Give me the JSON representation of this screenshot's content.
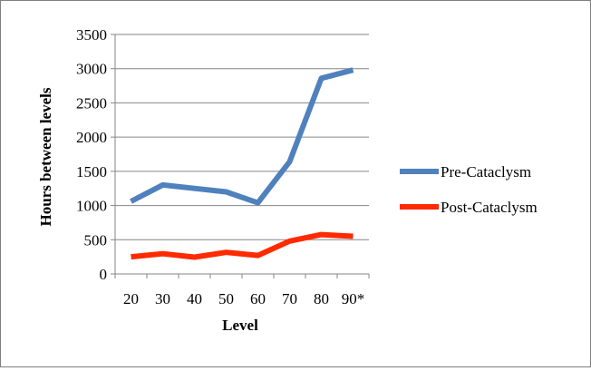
{
  "chart_data": {
    "type": "line",
    "title": "",
    "xlabel": "Level",
    "ylabel": "Hours between levels",
    "categories": [
      "20",
      "30",
      "40",
      "50",
      "60",
      "70",
      "80",
      "90*"
    ],
    "ylim": [
      0,
      3500
    ],
    "yticks": [
      0,
      500,
      1000,
      1500,
      2000,
      2500,
      3000,
      3500
    ],
    "grid": "horizontal",
    "legend_position": "right",
    "series": [
      {
        "name": "Pre-Cataclysm",
        "color": "#4f81bd",
        "values": [
          1060,
          1300,
          1250,
          1200,
          1040,
          1640,
          2860,
          2980
        ]
      },
      {
        "name": "Post-Cataclysm",
        "color": "#ff2a00",
        "values": [
          250,
          295,
          245,
          315,
          270,
          480,
          575,
          550
        ]
      }
    ]
  }
}
